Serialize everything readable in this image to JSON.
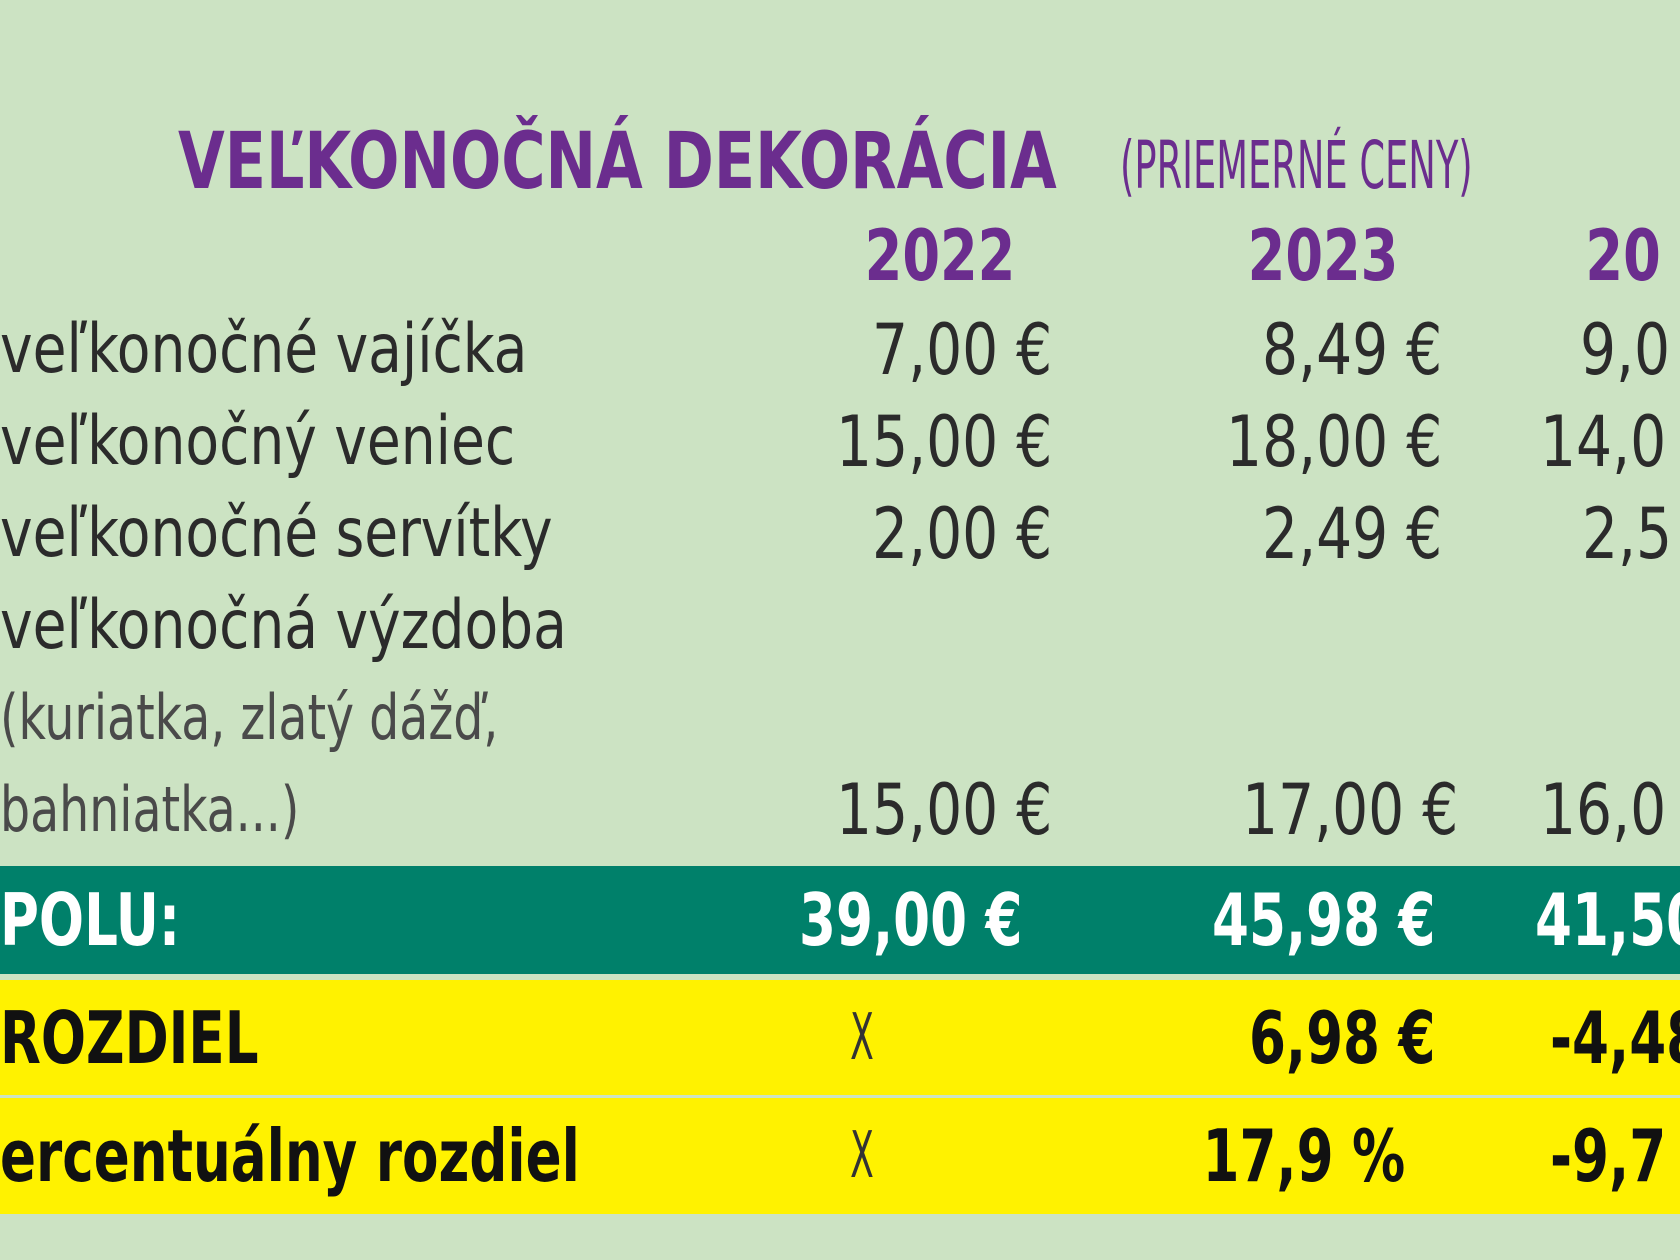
{
  "chart_data": {
    "type": "table",
    "title": "VEĽKONOČNÁ DEKORÁCIA",
    "subtitle": "(PRIEMERNÉ CENY)",
    "columns": [
      "2022",
      "2023",
      "20"
    ],
    "rows": [
      {
        "label": "veľkonočné vajíčka",
        "values": [
          "7,00 €",
          "8,49 €",
          "9,0"
        ]
      },
      {
        "label": "veľkonočný veniec",
        "values": [
          "15,00 €",
          "18,00 €",
          "14,0"
        ]
      },
      {
        "label": "veľkonočné servítky",
        "values": [
          "2,00 €",
          "2,49 €",
          "2,5"
        ]
      },
      {
        "label": "veľkonočná výzdoba",
        "note_lines": [
          "(kuriatka, zlatý dážď,",
          "bahniatka...)"
        ],
        "values": [
          "15,00 €",
          "17,00 €",
          "16,0"
        ]
      }
    ],
    "total": {
      "label": "POLU:",
      "values": [
        "39,00 €",
        "45,98 €",
        "41,50"
      ]
    },
    "difference": {
      "label": "ROZDIEL",
      "values": [
        "X",
        "6,98 €",
        "-4,48"
      ]
    },
    "percent_difference": {
      "label": "ercentuálny rozdiel",
      "values": [
        "X",
        "17,9 %",
        "-9,7"
      ]
    },
    "colors": {
      "background": "#cce3c3",
      "title": "#6b2d8e",
      "total_bar": "#00806a",
      "highlight_bar": "#fff200"
    }
  }
}
